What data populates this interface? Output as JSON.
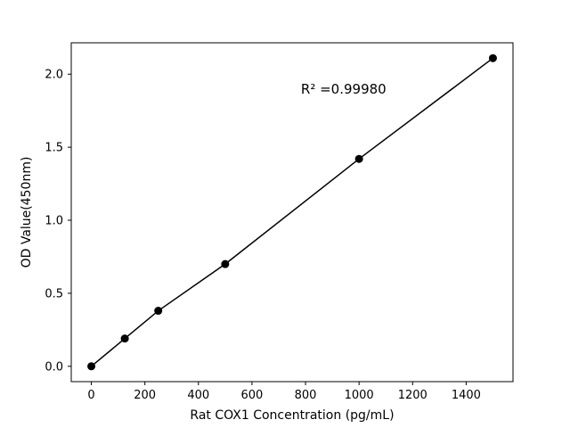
{
  "chart_data": {
    "type": "scatter",
    "title": "",
    "xlabel": "Rat COX1 Concentration (pg/mL)",
    "ylabel": "OD Value(450nm)",
    "annotation": "R² =0.99980",
    "x": [
      0,
      125,
      250,
      500,
      1000,
      1500
    ],
    "y": [
      0.0,
      0.19,
      0.38,
      0.7,
      1.42,
      2.11
    ],
    "xlim": [
      -75,
      1575
    ],
    "ylim": [
      -0.105,
      2.215
    ],
    "xticks": [
      0,
      200,
      400,
      600,
      800,
      1000,
      1200,
      1400
    ],
    "yticks": [
      0.0,
      0.5,
      1.0,
      1.5,
      2.0
    ],
    "grid": false,
    "legend": null,
    "line_color": "#000000",
    "marker_color": "#000000",
    "background": "#ffffff"
  }
}
